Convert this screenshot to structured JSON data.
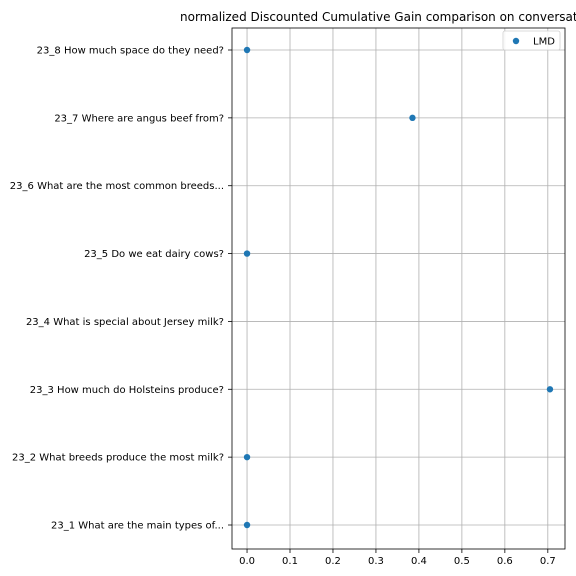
{
  "chart_data": {
    "type": "scatter",
    "title": "normalized Discounted Cumulative Gain comparison on conversat",
    "xlabel": "",
    "ylabel": "",
    "xlim": [
      -0.035,
      0.74
    ],
    "xticks": [
      0.0,
      0.1,
      0.2,
      0.3,
      0.4,
      0.5,
      0.6,
      0.7
    ],
    "xtick_labels": [
      "0.0",
      "0.1",
      "0.2",
      "0.3",
      "0.4",
      "0.5",
      "0.6",
      "0.7"
    ],
    "categories": [
      "23_1 What are the main types of...",
      "23_2 What breeds produce the most milk?",
      "23_3 How much do Holsteins produce?",
      "23_4 What is special about Jersey milk?",
      "23_5 Do we eat dairy cows?",
      "23_6 What are the most common breeds...",
      "23_7 Where are angus beef from?",
      "23_8 How much space do they need?"
    ],
    "series": [
      {
        "name": "LMD",
        "color": "#1f77b4",
        "points": [
          {
            "category": "23_1 What are the main types of...",
            "value": 0.0
          },
          {
            "category": "23_2 What breeds produce the most milk?",
            "value": 0.0
          },
          {
            "category": "23_3 How much do Holsteins produce?",
            "value": 0.705
          },
          {
            "category": "23_5 Do we eat dairy cows?",
            "value": 0.0
          },
          {
            "category": "23_7 Where are angus beef from?",
            "value": 0.385
          },
          {
            "category": "23_8 How much space do they need?",
            "value": 0.0
          }
        ]
      }
    ],
    "grid": true,
    "legend_position": "top-right"
  }
}
